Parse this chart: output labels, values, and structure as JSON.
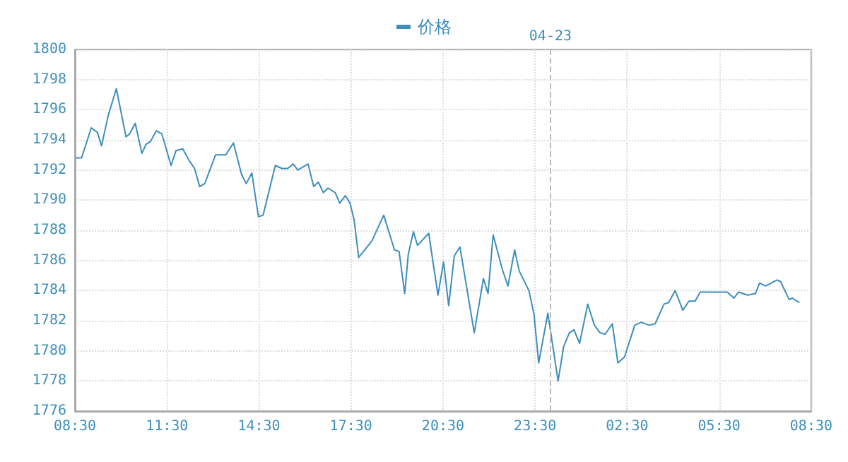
{
  "chart_data": {
    "type": "line",
    "x": [
      "--04-22T08:32",
      "--04-22T08:43",
      "--04-22T09:02",
      "--04-22T09:14",
      "--04-22T09:22",
      "--04-22T09:35",
      "--04-22T09:51",
      "--04-22T10:10",
      "--04-22T10:17",
      "--04-22T10:28",
      "--04-22T10:41",
      "--04-22T10:49",
      "--04-22T10:58",
      "--04-22T11:09",
      "--04-22T11:20",
      "--04-22T11:38",
      "--04-22T11:48",
      "--04-22T12:01",
      "--04-22T12:14",
      "--04-22T12:24",
      "--04-22T12:34",
      "--04-22T12:44",
      "--04-22T13:05",
      "--04-22T13:14",
      "--04-22T13:25",
      "--04-22T13:40",
      "--04-22T13:56",
      "--04-22T14:05",
      "--04-22T14:16",
      "--04-22T14:29",
      "--04-22T14:38",
      "--04-22T15:02",
      "--04-22T15:15",
      "--04-22T15:26",
      "--04-22T15:37",
      "--04-22T15:46",
      "--04-22T16:06",
      "--04-22T16:17",
      "--04-22T16:26",
      "--04-22T16:36",
      "--04-22T16:45",
      "--04-22T16:59",
      "--04-22T17:08",
      "--04-22T17:19",
      "--04-22T17:28",
      "--04-22T17:36",
      "--04-22T17:45",
      "--04-22T18:11",
      "--04-22T18:34",
      "--04-22T18:55",
      "--04-22T19:04",
      "--04-22T19:15",
      "--04-22T19:22",
      "--04-22T19:32",
      "--04-22T19:40",
      "--04-22T20:02",
      "--04-22T20:20",
      "--04-22T20:31",
      "--04-22T20:41",
      "--04-22T20:52",
      "--04-22T21:03",
      "--04-22T21:31",
      "--04-22T21:49",
      "--04-22T21:58",
      "--04-22T22:08",
      "--04-22T22:26",
      "--04-22T22:37",
      "--04-22T22:50",
      "--04-22T22:59",
      "--04-22T23:18",
      "--04-22T23:28",
      "--04-22T23:37",
      "--04-22T23:55",
      "--04-23T00:15",
      "--04-23T00:26",
      "--04-23T00:37",
      "--04-23T00:46",
      "--04-23T00:57",
      "--04-23T01:13",
      "--04-23T01:26",
      "--04-23T01:37",
      "--04-23T01:47",
      "--04-23T02:01",
      "--04-23T02:12",
      "--04-23T02:25",
      "--04-23T02:45",
      "--04-23T02:58",
      "--04-23T03:13",
      "--04-23T03:25",
      "--04-23T03:42",
      "--04-23T03:51",
      "--04-23T04:04",
      "--04-23T04:19",
      "--04-23T04:31",
      "--04-23T04:43",
      "--04-23T04:53",
      "--04-23T05:46",
      "--04-23T05:59",
      "--04-23T06:08",
      "--04-23T06:26",
      "--04-23T06:41",
      "--04-23T06:49",
      "--04-23T07:01",
      "--04-23T07:23",
      "--04-23T07:30",
      "--04-23T07:47",
      "--04-23T07:53",
      "--04-23T08:07"
    ],
    "series": [
      {
        "name": "价格",
        "color": "#3d8ebd",
        "values": [
          1792.8,
          1792.8,
          1794.8,
          1794.5,
          1793.6,
          1795.6,
          1797.4,
          1794.2,
          1794.4,
          1795.1,
          1793.1,
          1793.7,
          1793.9,
          1794.6,
          1794.4,
          1792.3,
          1793.3,
          1793.4,
          1792.6,
          1792.1,
          1790.9,
          1791.1,
          1793,
          1793,
          1793,
          1793.8,
          1791.7,
          1791.1,
          1791.8,
          1788.9,
          1789,
          1792.3,
          1792.1,
          1792.1,
          1792.4,
          1792,
          1792.4,
          1790.9,
          1791.2,
          1790.5,
          1790.8,
          1790.5,
          1789.8,
          1790.3,
          1789.8,
          1788.7,
          1786.2,
          1787.3,
          1789,
          1786.7,
          1786.6,
          1783.8,
          1786.4,
          1787.9,
          1787,
          1787.8,
          1783.7,
          1785.9,
          1783,
          1786.3,
          1786.9,
          1781.2,
          1784.8,
          1783.8,
          1787.7,
          1785.4,
          1784.3,
          1786.7,
          1785.3,
          1784,
          1782.4,
          1779.2,
          1782.5,
          1778,
          1780.3,
          1781.2,
          1781.4,
          1780.5,
          1783.1,
          1781.7,
          1781.2,
          1781.1,
          1781.8,
          1779.2,
          1779.6,
          1781.7,
          1781.9,
          1781.7,
          1781.8,
          1783.1,
          1783.2,
          1784,
          1782.7,
          1783.3,
          1783.3,
          1783.9,
          1783.9,
          1783.5,
          1783.9,
          1783.7,
          1783.8,
          1784.5,
          1784.3,
          1784.7,
          1784.6,
          1783.4,
          1783.5,
          1783.2
        ]
      }
    ],
    "xlim": [
      "--04-22T08:30",
      "--04-23T08:30"
    ],
    "xticks": [
      {
        "value": "--04-22T08:30",
        "label": "08:30"
      },
      {
        "value": "--04-22T11:30",
        "label": "11:30"
      },
      {
        "value": "--04-22T14:30",
        "label": "14:30"
      },
      {
        "value": "--04-22T17:30",
        "label": "17:30"
      },
      {
        "value": "--04-22T20:30",
        "label": "20:30"
      },
      {
        "value": "--04-22T23:30",
        "label": "23:30"
      },
      {
        "value": "--04-23T02:30",
        "label": "02:30"
      },
      {
        "value": "--04-23T05:30",
        "label": "05:30"
      },
      {
        "value": "--04-23T08:30",
        "label": "08:30"
      }
    ],
    "ylim": [
      1776,
      1800
    ],
    "yticks": [
      1776,
      1778,
      1780,
      1782,
      1784,
      1786,
      1788,
      1790,
      1792,
      1794,
      1796,
      1798,
      1800
    ],
    "ref_lines": [
      {
        "axis": "x",
        "value": "--04-23",
        "label": "04-23",
        "color": "#bbbbbb",
        "line_style": "dashed"
      }
    ],
    "grid": true,
    "legend": "top",
    "marker": "none",
    "line_style": "solid"
  }
}
